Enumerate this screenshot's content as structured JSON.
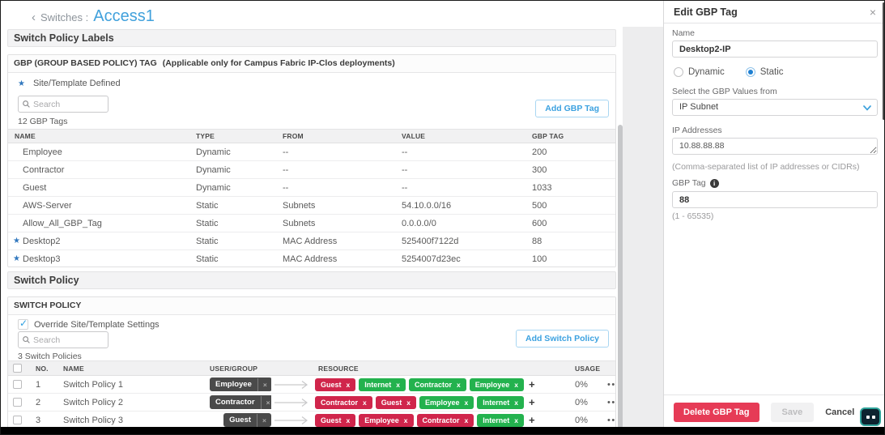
{
  "colors": {
    "accent_blue": "#41a1dc",
    "star_blue": "#3278be",
    "tag_red": "#d0254b",
    "tag_green": "#23b24e",
    "tag_dark": "#4a4a4a",
    "delete_red": "#e63b56"
  },
  "breadcrumb": {
    "back_icon": "‹",
    "parent": "Switches",
    "separator": ":",
    "current": "Access1"
  },
  "bands": {
    "labels": "Switch Policy Labels",
    "policy": "Switch Policy"
  },
  "gbp": {
    "header_main": "GBP (GROUP BASED POLICY) TAG",
    "header_note": "(Applicable only for Campus Fabric IP-Clos deployments)",
    "site_template_label": "Site/Template Defined",
    "search_placeholder": "Search",
    "count": "12 GBP Tags",
    "add_button": "Add GBP Tag",
    "columns": [
      "NAME",
      "TYPE",
      "FROM",
      "VALUE",
      "GBP TAG"
    ],
    "rows": [
      {
        "starred": false,
        "name": "Employee",
        "type": "Dynamic",
        "from": "--",
        "value": "--",
        "tag": "200"
      },
      {
        "starred": false,
        "name": "Contractor",
        "type": "Dynamic",
        "from": "--",
        "value": "--",
        "tag": "300"
      },
      {
        "starred": false,
        "name": "Guest",
        "type": "Dynamic",
        "from": "--",
        "value": "--",
        "tag": "1033"
      },
      {
        "starred": false,
        "name": "AWS-Server",
        "type": "Static",
        "from": "Subnets",
        "value": "54.10.0.0/16",
        "tag": "500"
      },
      {
        "starred": false,
        "name": "Allow_All_GBP_Tag",
        "type": "Static",
        "from": "Subnets",
        "value": "0.0.0.0/0",
        "tag": "600"
      },
      {
        "starred": true,
        "name": "Desktop2",
        "type": "Static",
        "from": "MAC Address",
        "value": "525400f7122d",
        "tag": "88"
      },
      {
        "starred": true,
        "name": "Desktop3",
        "type": "Static",
        "from": "MAC Address",
        "value": "5254007d23ec",
        "tag": "100"
      }
    ]
  },
  "switch_policy": {
    "header": "SWITCH POLICY",
    "override_label": "Override Site/Template Settings",
    "search_placeholder": "Search",
    "count": "3 Switch Policies",
    "add_button": "Add Switch Policy",
    "columns": {
      "no": "NO.",
      "name": "NAME",
      "user_group": "USER/GROUP",
      "resource": "RESOURCE",
      "usage": "USAGE"
    },
    "rows": [
      {
        "no": "1",
        "name": "Switch Policy 1",
        "user_group": "Employee",
        "resources": [
          {
            "label": "Guest",
            "color": "red"
          },
          {
            "label": "Internet",
            "color": "green"
          },
          {
            "label": "Contractor",
            "color": "green"
          },
          {
            "label": "Employee",
            "color": "green"
          }
        ],
        "usage": "0%"
      },
      {
        "no": "2",
        "name": "Switch Policy 2",
        "user_group": "Contractor",
        "resources": [
          {
            "label": "Contractor",
            "color": "red"
          },
          {
            "label": "Guest",
            "color": "red"
          },
          {
            "label": "Employee",
            "color": "green"
          },
          {
            "label": "Internet",
            "color": "green"
          }
        ],
        "usage": "0%"
      },
      {
        "no": "3",
        "name": "Switch Policy 3",
        "user_group": "Guest",
        "resources": [
          {
            "label": "Guest",
            "color": "red"
          },
          {
            "label": "Employee",
            "color": "red"
          },
          {
            "label": "Contractor",
            "color": "red"
          },
          {
            "label": "Internet",
            "color": "green"
          }
        ],
        "usage": "0%"
      }
    ]
  },
  "panel": {
    "title": "Edit GBP Tag",
    "close_icon": "×",
    "name_label": "Name",
    "name_value": "Desktop2-IP",
    "radio_dynamic": "Dynamic",
    "radio_static": "Static",
    "select_label": "Select the GBP Values from",
    "select_value": "IP Subnet",
    "ip_label": "IP Addresses",
    "ip_value": "10.88.88.88",
    "ip_hint": "(Comma-separated list of IP addresses or CIDRs)",
    "tag_label": "GBP Tag",
    "tag_info_icon": "i",
    "tag_value": "88",
    "tag_hint": "(1 - 65535)",
    "delete_button": "Delete GBP Tag",
    "save_button": "Save",
    "cancel_button": "Cancel"
  }
}
